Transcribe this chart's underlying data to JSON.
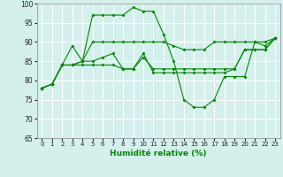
{
  "xlabel": "Humidité relative (%)",
  "xlim": [
    -0.5,
    23.5
  ],
  "ylim": [
    65,
    100
  ],
  "yticks": [
    65,
    70,
    75,
    80,
    85,
    90,
    95,
    100
  ],
  "xticks": [
    0,
    1,
    2,
    3,
    4,
    5,
    6,
    7,
    8,
    9,
    10,
    11,
    12,
    13,
    14,
    15,
    16,
    17,
    18,
    19,
    20,
    21,
    22,
    23
  ],
  "bg_color": "#d4f0ec",
  "grid_color": "#ffffff",
  "line_color": "#008800",
  "lines": [
    [
      78,
      79,
      84,
      89,
      85,
      97,
      97,
      97,
      97,
      99,
      98,
      98,
      92,
      85,
      75,
      73,
      73,
      75,
      81,
      81,
      81,
      90,
      89,
      91
    ],
    [
      78,
      79,
      84,
      84,
      85,
      90,
      90,
      90,
      90,
      90,
      90,
      90,
      90,
      89,
      88,
      88,
      88,
      90,
      90,
      90,
      90,
      90,
      90,
      91
    ],
    [
      78,
      79,
      84,
      84,
      85,
      85,
      86,
      87,
      83,
      83,
      87,
      82,
      82,
      82,
      82,
      82,
      82,
      82,
      82,
      83,
      88,
      88,
      88,
      91
    ],
    [
      78,
      79,
      84,
      84,
      84,
      84,
      84,
      84,
      83,
      83,
      86,
      83,
      83,
      83,
      83,
      83,
      83,
      83,
      83,
      83,
      88,
      88,
      88,
      91
    ]
  ]
}
